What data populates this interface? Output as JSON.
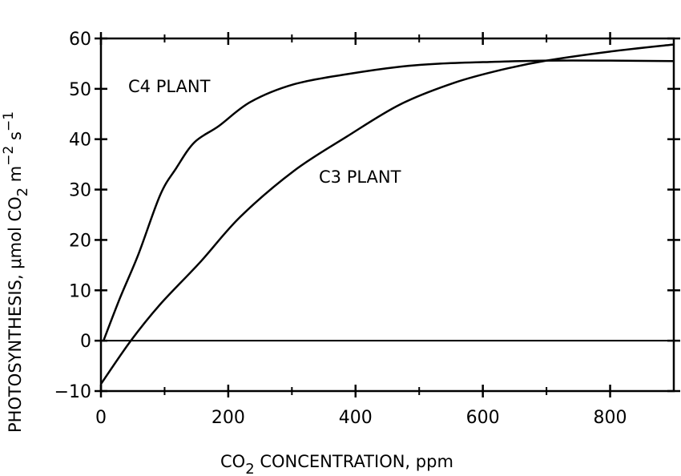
{
  "chart_data": {
    "type": "line",
    "title": "",
    "xlabel_parts": [
      "CO",
      "2",
      " CONCENTRATION,  ppm"
    ],
    "ylabel_parts": [
      "PHOTOSYNTHESIS,  μmol  CO",
      "2",
      "  m",
      "−2",
      " s",
      "−1"
    ],
    "xlim": [
      0,
      900
    ],
    "ylim": [
      -10,
      60
    ],
    "xticks": [
      0,
      200,
      400,
      600,
      800
    ],
    "xminor": [
      100,
      300,
      500,
      700
    ],
    "yticks": [
      -10,
      0,
      10,
      20,
      30,
      40,
      50,
      60
    ],
    "xtick_labels": [
      "0",
      "200",
      "400",
      "600",
      "800"
    ],
    "ytick_labels": [
      "−10",
      "0",
      "10",
      "20",
      "30",
      "40",
      "50",
      "60"
    ],
    "grid": false,
    "zero_line": true,
    "series": [
      {
        "name": "C4  PLANT",
        "x": [
          4,
          30,
          59,
          93,
          118,
          147,
          185,
          235,
          303,
          386,
          470,
          533,
          600,
          700,
          800,
          900
        ],
        "y": [
          0,
          8.5,
          17.2,
          28.9,
          34.2,
          39.4,
          42.6,
          47.4,
          50.9,
          52.9,
          54.4,
          55.0,
          55.3,
          55.6,
          55.6,
          55.5
        ]
      },
      {
        "name": "C3  PLANT",
        "x": [
          0,
          47,
          93,
          156,
          219,
          303,
          386,
          470,
          555,
          630,
          700,
          800,
          900
        ],
        "y": [
          -8.6,
          0,
          7.2,
          15.6,
          24.6,
          33.7,
          40.5,
          46.9,
          51.2,
          53.8,
          55.6,
          57.4,
          58.8
        ]
      }
    ],
    "annotations": [
      {
        "text": "C4  PLANT",
        "x": 60,
        "y": 50
      },
      {
        "text": "C3  PLANT",
        "x": 430,
        "y": 32
      }
    ],
    "line_color": "#000000"
  }
}
